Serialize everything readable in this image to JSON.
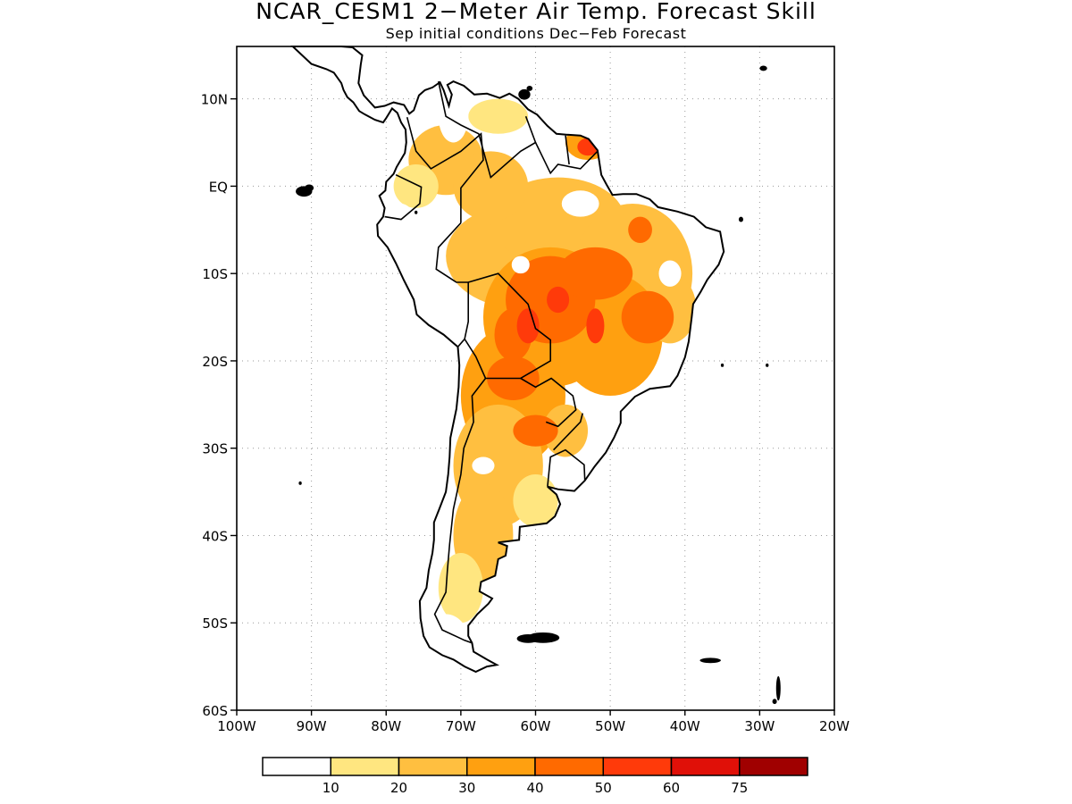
{
  "title": "NCAR_CESM1 2−Meter Air Temp. Forecast Skill",
  "subtitle": "Sep initial conditions  Dec−Feb Forecast",
  "map": {
    "lon_range": [
      -100,
      -20
    ],
    "lat_range": [
      -60,
      16
    ],
    "grid": true,
    "lat_labels": [
      {
        "lat": 10,
        "text": "10N"
      },
      {
        "lat": 0,
        "text": "EQ"
      },
      {
        "lat": -10,
        "text": "10S"
      },
      {
        "lat": -20,
        "text": "20S"
      },
      {
        "lat": -30,
        "text": "30S"
      },
      {
        "lat": -40,
        "text": "40S"
      },
      {
        "lat": -50,
        "text": "50S"
      },
      {
        "lat": -60,
        "text": "60S"
      }
    ],
    "lon_labels": [
      {
        "lon": -100,
        "text": "100W"
      },
      {
        "lon": -90,
        "text": "90W"
      },
      {
        "lon": -80,
        "text": "80W"
      },
      {
        "lon": -70,
        "text": "70W"
      },
      {
        "lon": -60,
        "text": "60W"
      },
      {
        "lon": -50,
        "text": "50W"
      },
      {
        "lon": -40,
        "text": "40W"
      },
      {
        "lon": -30,
        "text": "30W"
      },
      {
        "lon": -20,
        "text": "20W"
      }
    ],
    "skill_colors": [
      "#ffffff",
      "#ffe680",
      "#ffbf40",
      "#ffa010",
      "#ff6a00",
      "#ff3a0a",
      "#e01008",
      "#a00000"
    ]
  },
  "colorbar": {
    "colors": [
      "#ffffff",
      "#ffe680",
      "#ffbf40",
      "#ffa010",
      "#ff6a00",
      "#ff3a0a",
      "#e01008",
      "#a00000"
    ],
    "tick_labels": [
      "10",
      "20",
      "30",
      "40",
      "50",
      "60",
      "75"
    ]
  }
}
